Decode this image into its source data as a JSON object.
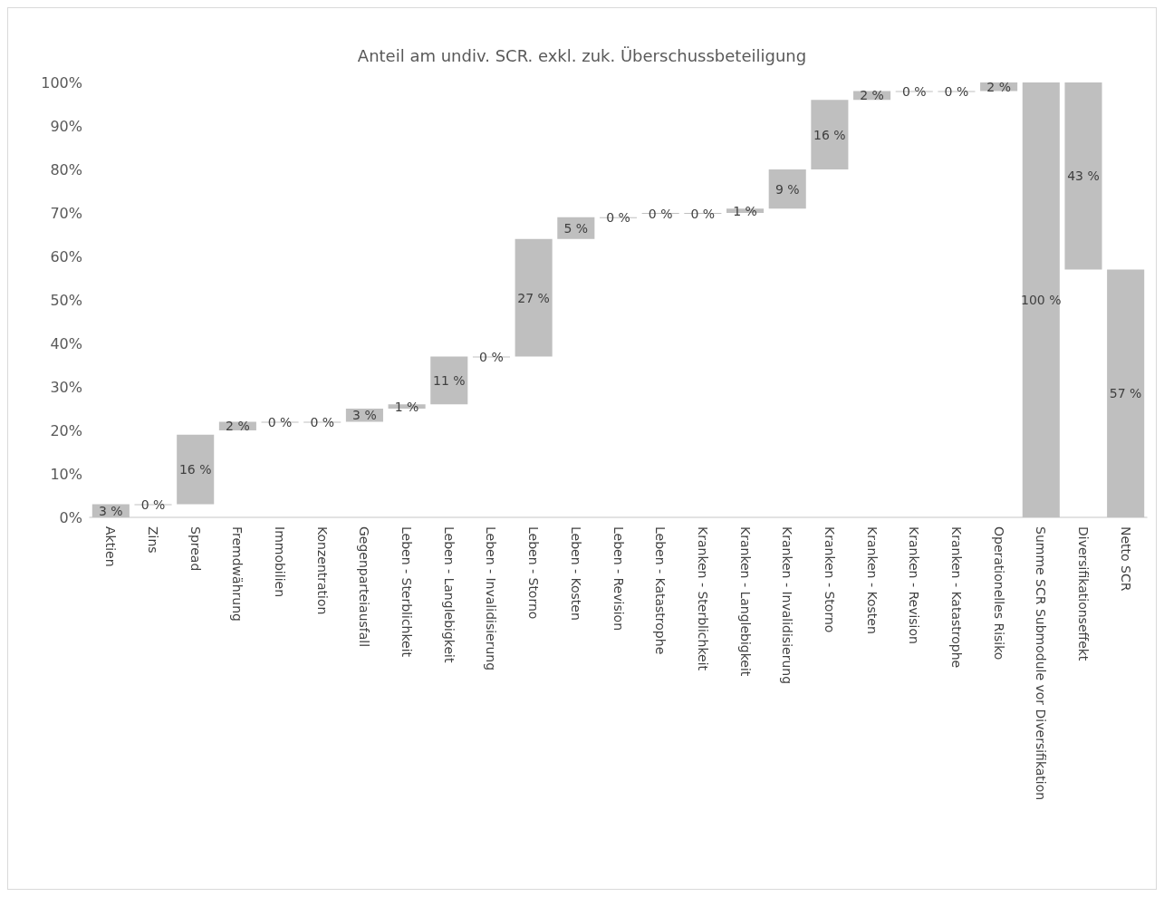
{
  "chart_data": {
    "type": "bar",
    "title": "Anteil am undiv. SCR. exkl. zuk. Überschussbeteiligung",
    "categories": [
      "Aktien",
      "Zins",
      "Spread",
      "Fremdwährung",
      "Immobilien",
      "Konzentration",
      "Gegenparteiausfall",
      "Leben - Sterblichkeit",
      "Leben - Langlebigkeit",
      "Leben - Invalidisierung",
      "Leben - Storno",
      "Leben - Kosten",
      "Leben - Revision",
      "Leben - Katastrophe",
      "Kranken - Sterblichkeit",
      "Kranken - Langlebigkeit",
      "Kranken - Invalidisierung",
      "Kranken - Storno",
      "Kranken - Kosten",
      "Kranken - Revision",
      "Kranken - Katastrophe",
      "Operationelles Risiko",
      "Summe SCR Submodule vor Diversifikation",
      "Diversifikationseffekt",
      "Netto SCR"
    ],
    "values": [
      3,
      0,
      16,
      2,
      0,
      0,
      3,
      1,
      11,
      0,
      27,
      5,
      0,
      0,
      0,
      1,
      9,
      16,
      2,
      0,
      0,
      2,
      100,
      43,
      57
    ],
    "base": [
      0,
      3,
      3,
      20,
      22,
      22,
      22,
      25,
      26,
      37,
      37,
      64,
      69,
      70,
      70,
      70,
      71,
      80,
      96,
      98,
      98,
      98,
      0,
      57,
      0
    ],
    "value_labels": [
      "3 %",
      "0 %",
      "16 %",
      "2 %",
      "0 %",
      "0 %",
      "3 %",
      "1 %",
      "11 %",
      "0 %",
      "27 %",
      "5 %",
      "0 %",
      "0 %",
      "0 %",
      "1 %",
      "9 %",
      "16 %",
      "2 %",
      "0 %",
      "0 %",
      "2 %",
      "100 %",
      "43 %",
      "57 %"
    ],
    "color": "#bfbfbf",
    "ylim": [
      0,
      100
    ],
    "yticks": [
      {
        "value": 0,
        "label": "0%"
      },
      {
        "value": 10,
        "label": "10%"
      },
      {
        "value": 20,
        "label": "20%"
      },
      {
        "value": 30,
        "label": "30%"
      },
      {
        "value": 40,
        "label": "40%"
      },
      {
        "value": 50,
        "label": "50%"
      },
      {
        "value": 60,
        "label": "60%"
      },
      {
        "value": 70,
        "label": "70%"
      },
      {
        "value": 80,
        "label": "80%"
      },
      {
        "value": 90,
        "label": "90%"
      },
      {
        "value": 100,
        "label": "100%"
      }
    ],
    "grid": false
  }
}
